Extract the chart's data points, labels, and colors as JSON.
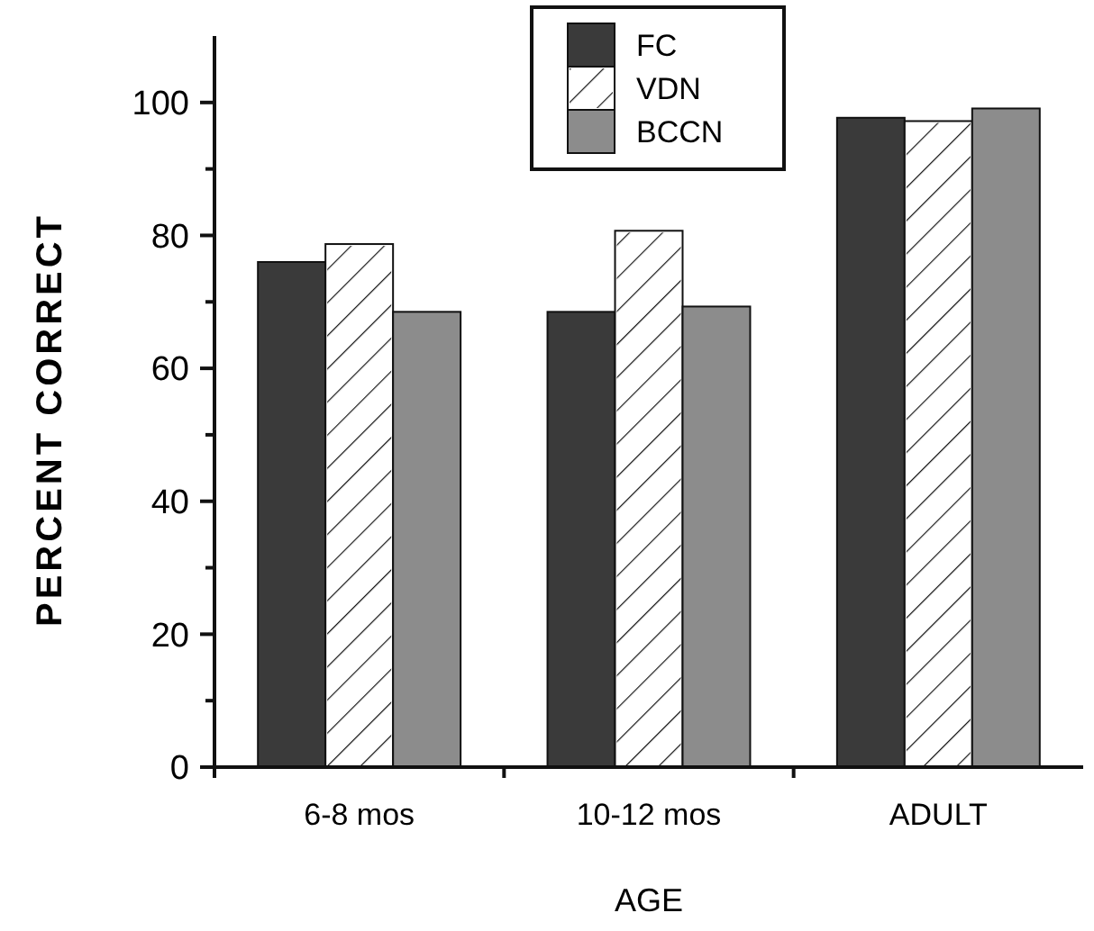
{
  "chart_data": {
    "type": "bar",
    "xlabel": "AGE",
    "ylabel": "PERCENT CORRECT",
    "categories": [
      "6-8 mos",
      "10-12 mos",
      "ADULT"
    ],
    "series": [
      {
        "name": "FC",
        "color": "#3a3a3a",
        "values": [
          76,
          68.5,
          97.7
        ]
      },
      {
        "name": "VDN",
        "color": "#ffffff",
        "values": [
          78.7,
          80.7,
          97.2
        ]
      },
      {
        "name": "BCCN",
        "color": "#8c8c8c",
        "values": [
          68.5,
          69.3,
          99.1
        ]
      }
    ],
    "ylim": [
      0,
      110
    ],
    "yticks": [
      0,
      {
        "value": 10,
        "label": null
      },
      20,
      {
        "value": 30,
        "label": null
      },
      40,
      {
        "value": 50,
        "label": null
      },
      60,
      {
        "value": 70,
        "label": null
      },
      80,
      {
        "value": 90,
        "label": null
      },
      100
    ],
    "legend": "top",
    "grid": false
  }
}
